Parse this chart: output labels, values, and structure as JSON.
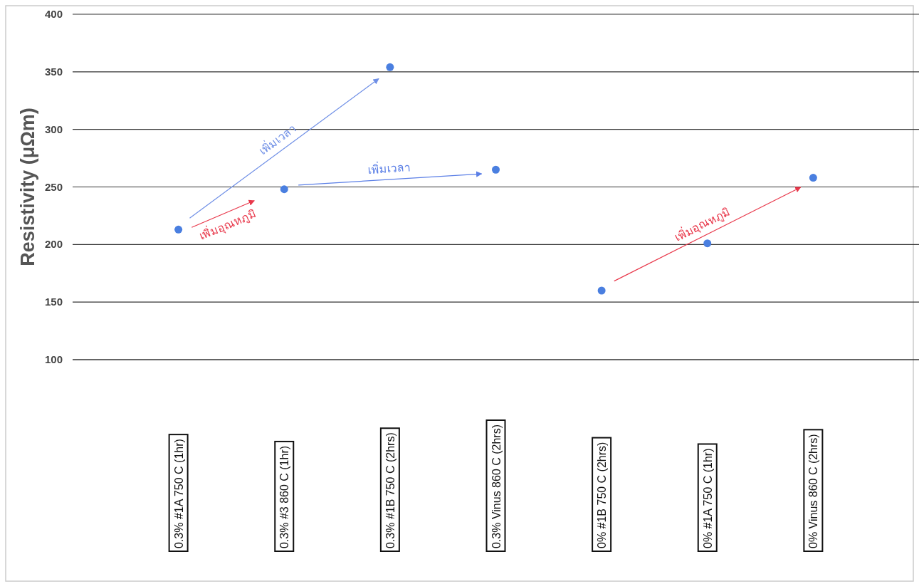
{
  "chart_data": {
    "type": "scatter",
    "categories": [
      "0.3% #1A 750 C (1hr)",
      "0.3% #3 860 C (1hr)",
      "0.3% #1B 750 C (2hrs)",
      "0.3% Vinus 860 C (2hrs)",
      "0% #1B 750 C (2hrs)",
      "0% #1A 750 C (1hr)",
      "0% Vinus 860 C (2hrs)"
    ],
    "values": [
      213,
      248,
      354,
      265,
      160,
      201,
      258
    ],
    "color": "#4a7fe0",
    "marker": "circle",
    "grid": "y",
    "ylim": [
      100,
      400
    ],
    "yticks": [
      100,
      150,
      200,
      250,
      300,
      350,
      400
    ],
    "ylabel": "Resistivity (μΩm)",
    "annotations": [
      "เพิ่มเวลา",
      "เพิ่มเวลา",
      "เพิ่มอุณหภูมิ",
      "เพิ่มอุณหภูมิ"
    ]
  }
}
